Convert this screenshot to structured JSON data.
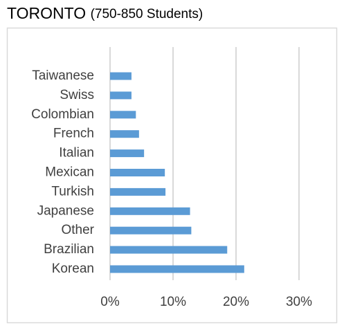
{
  "chart_data": {
    "type": "hbar",
    "title": "TORONTO",
    "subtitle": "(750-850 Students)",
    "categories": [
      "Taiwanese",
      "Swiss",
      "Colombian",
      "French",
      "Italian",
      "Mexican",
      "Turkish",
      "Japanese",
      "Other",
      "Brazilian",
      "Korean"
    ],
    "values": [
      3.4,
      3.4,
      4.1,
      4.6,
      5.4,
      8.7,
      8.8,
      12.7,
      12.9,
      18.6,
      21.3
    ],
    "color": "#5b9bd5",
    "xlim": [
      0,
      30
    ],
    "xticks": [
      {
        "value": 0,
        "label": "0%"
      },
      {
        "value": 10,
        "label": "10%"
      },
      {
        "value": 20,
        "label": "20%"
      },
      {
        "value": 30,
        "label": "30%"
      }
    ],
    "grid": true
  }
}
